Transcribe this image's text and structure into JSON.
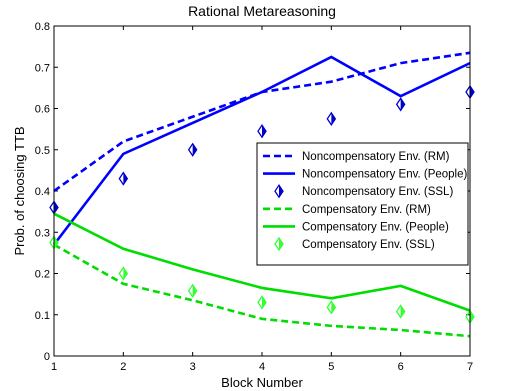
{
  "chart_data": {
    "type": "line",
    "title": "Rational Metareasoning",
    "xlabel": "Block Number",
    "ylabel": "Prob. of choosing TTB",
    "xlim": [
      1,
      7
    ],
    "ylim": [
      0,
      0.8
    ],
    "x_ticks": [
      "1",
      "2",
      "3",
      "4",
      "5",
      "6",
      "7"
    ],
    "y_ticks": [
      "0",
      "0.1",
      "0.2",
      "0.3",
      "0.4",
      "0.5",
      "0.6",
      "0.7",
      "0.8"
    ],
    "grid": false,
    "legend_position": "center-right",
    "x": [
      1,
      2,
      3,
      4,
      5,
      6,
      7
    ],
    "series": [
      {
        "name": "Noncompensatory Env. (RM)",
        "color": "#0000ff",
        "style": "dashed",
        "marker": "none",
        "values": [
          0.4,
          0.52,
          0.58,
          0.64,
          0.665,
          0.71,
          0.735
        ]
      },
      {
        "name": "Noncompensatory Env. (People)",
        "color": "#0000ff",
        "style": "solid",
        "marker": "none",
        "values": [
          0.27,
          0.49,
          0.565,
          0.64,
          0.725,
          0.63,
          0.71
        ]
      },
      {
        "name": "Noncompensatory Env. (SSL)",
        "color": "#0000cc",
        "style": "none",
        "marker": "diamond",
        "values": [
          0.36,
          0.43,
          0.5,
          0.545,
          0.575,
          0.61,
          0.64
        ]
      },
      {
        "name": "Compensatory Env. (RM)",
        "color": "#00dd00",
        "style": "dashed",
        "marker": "none",
        "values": [
          0.27,
          0.175,
          0.135,
          0.09,
          0.073,
          0.063,
          0.048
        ]
      },
      {
        "name": "Compensatory Env. (People)",
        "color": "#00dd00",
        "style": "solid",
        "marker": "none",
        "values": [
          0.345,
          0.26,
          0.21,
          0.165,
          0.14,
          0.17,
          0.11
        ]
      },
      {
        "name": "Compensatory Env. (SSL)",
        "color": "#33ff33",
        "style": "none",
        "marker": "diamond",
        "values": [
          0.275,
          0.2,
          0.158,
          0.13,
          0.118,
          0.108,
          0.095
        ]
      }
    ]
  }
}
